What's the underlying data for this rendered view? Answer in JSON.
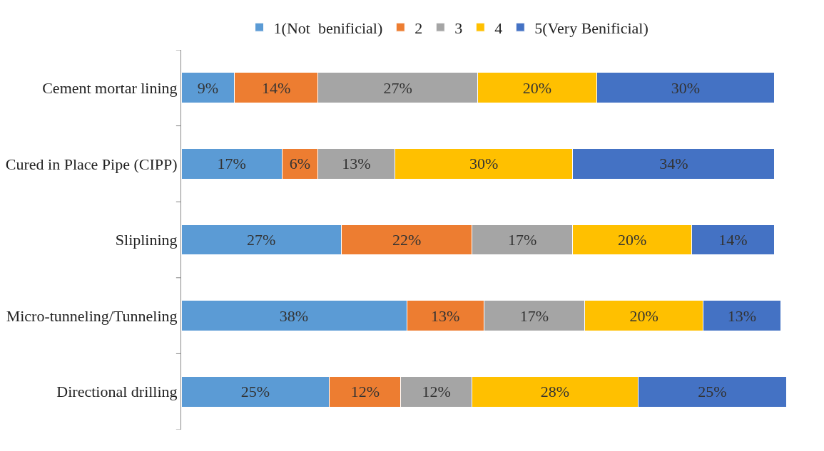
{
  "chart_data": {
    "type": "bar",
    "orientation": "horizontal",
    "stacked": true,
    "legend": "top",
    "grid": false,
    "tick_labels": "y",
    "categories": [
      "Cement mortar lining",
      "Cured in Place Pipe (CIPP)",
      "Sliplining",
      "Micro-tunneling/Tunneling",
      "Directional drilling"
    ],
    "series": [
      {
        "name": "1(Not  benificial)",
        "color": "#5b9bd5",
        "values": [
          9,
          17,
          27,
          38,
          25
        ],
        "value_labels": [
          "9%",
          "17%",
          "27%",
          "38%",
          "25%"
        ]
      },
      {
        "name": "2",
        "color": "#ed7d31",
        "values": [
          14,
          6,
          22,
          13,
          12
        ],
        "value_labels": [
          "14%",
          "6%",
          "22%",
          "13%",
          "12%"
        ]
      },
      {
        "name": "3",
        "color": "#a5a5a5",
        "values": [
          27,
          13,
          17,
          17,
          12
        ],
        "value_labels": [
          "27%",
          "13%",
          "17%",
          "17%",
          "12%"
        ]
      },
      {
        "name": "4",
        "color": "#ffc000",
        "values": [
          20,
          30,
          20,
          20,
          28
        ],
        "value_labels": [
          "20%",
          "30%",
          "20%",
          "20%",
          "28%"
        ]
      },
      {
        "name": "5(Very Benificial)",
        "color": "#4472c4",
        "values": [
          30,
          34,
          14,
          13,
          25
        ],
        "value_labels": [
          "30%",
          "34%",
          "14%",
          "13%",
          "25%"
        ]
      }
    ]
  }
}
